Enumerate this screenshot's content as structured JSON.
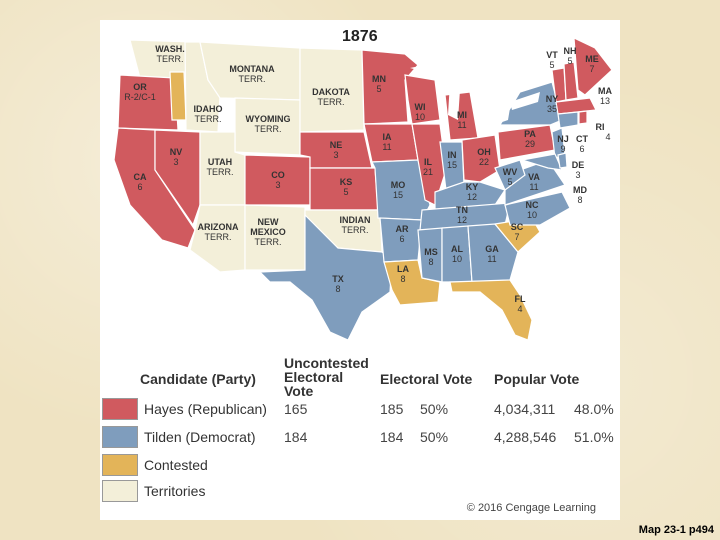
{
  "map": {
    "title": "1876",
    "colors": {
      "republican": "#d05a5f",
      "democrat": "#7f9dbd",
      "contested": "#e3b459",
      "territory": "#f3efd9",
      "water": "#ffffff",
      "border": "#ffffff"
    },
    "states": [
      {
        "abbr": "WASH.",
        "sub": "TERR.",
        "party": "territory"
      },
      {
        "abbr": "OR",
        "sub": "R-2/C-1",
        "party": "republican"
      },
      {
        "abbr": "IDAHO",
        "sub": "TERR.",
        "party": "territory"
      },
      {
        "abbr": "MONTANA",
        "sub": "TERR.",
        "party": "territory"
      },
      {
        "abbr": "WYOMING",
        "sub": "TERR.",
        "party": "territory"
      },
      {
        "abbr": "DAKOTA",
        "sub": "TERR.",
        "party": "territory"
      },
      {
        "abbr": "CA",
        "sub": "6",
        "party": "republican"
      },
      {
        "abbr": "NV",
        "sub": "3",
        "party": "republican"
      },
      {
        "abbr": "UTAH",
        "sub": "TERR.",
        "party": "territory"
      },
      {
        "abbr": "CO",
        "sub": "3",
        "party": "republican"
      },
      {
        "abbr": "NE",
        "sub": "3",
        "party": "republican"
      },
      {
        "abbr": "KS",
        "sub": "5",
        "party": "republican"
      },
      {
        "abbr": "ARIZONA",
        "sub": "TERR.",
        "party": "territory"
      },
      {
        "abbr": "NEW",
        "sub": "MEXICO",
        "sub2": "TERR.",
        "party": "territory"
      },
      {
        "abbr": "INDIAN",
        "sub": "TERR.",
        "party": "territory"
      },
      {
        "abbr": "TX",
        "sub": "8",
        "party": "democrat"
      },
      {
        "abbr": "MN",
        "sub": "5",
        "party": "republican"
      },
      {
        "abbr": "IA",
        "sub": "11",
        "party": "republican"
      },
      {
        "abbr": "MO",
        "sub": "15",
        "party": "democrat"
      },
      {
        "abbr": "AR",
        "sub": "6",
        "party": "democrat"
      },
      {
        "abbr": "LA",
        "sub": "8",
        "party": "contested"
      },
      {
        "abbr": "WI",
        "sub": "10",
        "party": "republican"
      },
      {
        "abbr": "IL",
        "sub": "21",
        "party": "republican"
      },
      {
        "abbr": "MI",
        "sub": "11",
        "party": "republican"
      },
      {
        "abbr": "IN",
        "sub": "15",
        "party": "democrat"
      },
      {
        "abbr": "OH",
        "sub": "22",
        "party": "republican"
      },
      {
        "abbr": "KY",
        "sub": "12",
        "party": "democrat"
      },
      {
        "abbr": "TN",
        "sub": "12",
        "party": "democrat"
      },
      {
        "abbr": "MS",
        "sub": "8",
        "party": "democrat"
      },
      {
        "abbr": "AL",
        "sub": "10",
        "party": "democrat"
      },
      {
        "abbr": "GA",
        "sub": "11",
        "party": "democrat"
      },
      {
        "abbr": "FL",
        "sub": "4",
        "party": "contested"
      },
      {
        "abbr": "SC",
        "sub": "7",
        "party": "contested"
      },
      {
        "abbr": "NC",
        "sub": "10",
        "party": "democrat"
      },
      {
        "abbr": "VA",
        "sub": "11",
        "party": "democrat"
      },
      {
        "abbr": "WV",
        "sub": "5",
        "party": "democrat"
      },
      {
        "abbr": "PA",
        "sub": "29",
        "party": "republican"
      },
      {
        "abbr": "NY",
        "sub": "35",
        "party": "democrat"
      },
      {
        "abbr": "VT",
        "sub": "5",
        "party": "republican"
      },
      {
        "abbr": "NH",
        "sub": "5",
        "party": "republican"
      },
      {
        "abbr": "ME",
        "sub": "7",
        "party": "republican"
      },
      {
        "abbr": "MA",
        "sub": "13",
        "party": "republican"
      },
      {
        "abbr": "RI",
        "sub": "4",
        "party": "republican"
      },
      {
        "abbr": "CT",
        "sub": "6",
        "party": "democrat"
      },
      {
        "abbr": "NJ",
        "sub": "9",
        "party": "democrat"
      },
      {
        "abbr": "DE",
        "sub": "3",
        "party": "democrat"
      },
      {
        "abbr": "MD",
        "sub": "8",
        "party": "democrat"
      }
    ]
  },
  "legend": {
    "col_candidate": "Candidate (Party)",
    "col_uncontested_1": "Uncontested",
    "col_uncontested_2": "Electoral",
    "col_uncontested_3": "Vote",
    "col_electoral": "Electoral Vote",
    "col_popular": "Popular Vote",
    "rows": [
      {
        "label": "Hayes (Republican)",
        "uncontested": "165",
        "electoral": "185",
        "electoral_pct": "50%",
        "popular": "4,034,311",
        "popular_pct": "48.0%",
        "color": "#d05a5f"
      },
      {
        "label": "Tilden (Democrat)",
        "uncontested": "184",
        "electoral": "184",
        "electoral_pct": "50%",
        "popular": "4,288,546",
        "popular_pct": "51.0%",
        "color": "#7f9dbd"
      },
      {
        "label": "Contested",
        "color": "#e3b459"
      },
      {
        "label": "Territories",
        "color": "#f3efd9"
      }
    ]
  },
  "copyright": "© 2016 Cengage Learning",
  "caption": "Map 23-1 p494"
}
